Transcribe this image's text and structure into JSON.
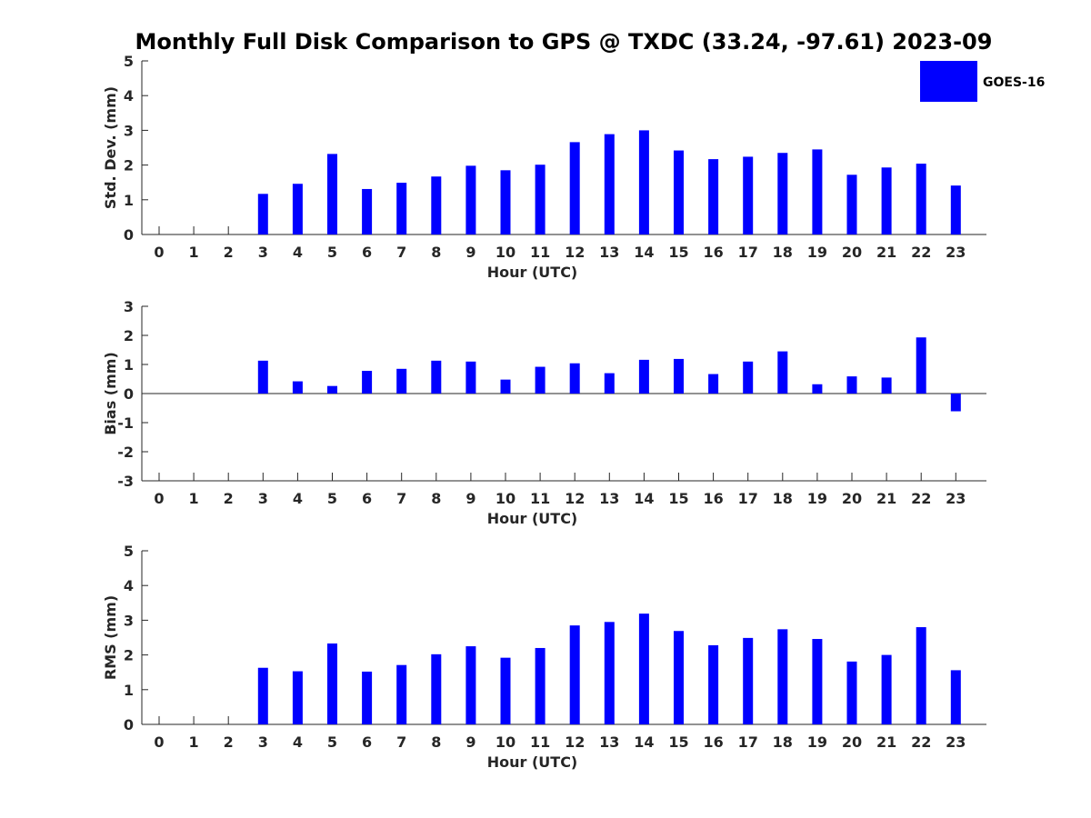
{
  "title": "Monthly Full Disk Comparison to GPS @ TXDC (33.24, -97.61) 2023-09",
  "colors": {
    "bar": "#0000ff",
    "axis": "#262626",
    "background": "#ffffff"
  },
  "legend": {
    "label": "GOES-16",
    "placement": "top-right"
  },
  "chart_data": [
    {
      "type": "bar",
      "ylabel": "Std. Dev. (mm)",
      "xlabel": "Hour (UTC)",
      "ylim": [
        0,
        5
      ],
      "yticks": [
        0,
        1,
        2,
        3,
        4,
        5
      ],
      "categories": [
        0,
        1,
        2,
        3,
        4,
        5,
        6,
        7,
        8,
        9,
        10,
        11,
        12,
        13,
        14,
        15,
        16,
        17,
        18,
        19,
        20,
        21,
        22,
        23
      ],
      "series": [
        {
          "name": "GOES-16",
          "values": [
            null,
            null,
            null,
            1.17,
            1.46,
            2.32,
            1.31,
            1.49,
            1.67,
            1.98,
            1.85,
            2.01,
            2.66,
            2.89,
            3.0,
            2.42,
            2.17,
            2.24,
            2.35,
            2.45,
            1.72,
            1.93,
            2.04,
            1.41
          ]
        }
      ]
    },
    {
      "type": "bar",
      "ylabel": "Bias (mm)",
      "xlabel": "Hour (UTC)",
      "ylim": [
        -3,
        3
      ],
      "yticks": [
        -3,
        -2,
        -1,
        0,
        1,
        2,
        3
      ],
      "categories": [
        0,
        1,
        2,
        3,
        4,
        5,
        6,
        7,
        8,
        9,
        10,
        11,
        12,
        13,
        14,
        15,
        16,
        17,
        18,
        19,
        20,
        21,
        22,
        23
      ],
      "series": [
        {
          "name": "GOES-16",
          "values": [
            null,
            null,
            null,
            1.13,
            0.42,
            0.26,
            0.78,
            0.85,
            1.13,
            1.1,
            0.48,
            0.92,
            1.04,
            0.7,
            1.16,
            1.19,
            0.67,
            1.1,
            1.45,
            0.32,
            0.59,
            0.55,
            1.93,
            -0.61
          ]
        }
      ]
    },
    {
      "type": "bar",
      "ylabel": "RMS (mm)",
      "xlabel": "Hour (UTC)",
      "ylim": [
        0,
        5
      ],
      "yticks": [
        0,
        1,
        2,
        3,
        4,
        5
      ],
      "categories": [
        0,
        1,
        2,
        3,
        4,
        5,
        6,
        7,
        8,
        9,
        10,
        11,
        12,
        13,
        14,
        15,
        16,
        17,
        18,
        19,
        20,
        21,
        22,
        23
      ],
      "series": [
        {
          "name": "GOES-16",
          "values": [
            null,
            null,
            null,
            1.63,
            1.53,
            2.33,
            1.52,
            1.71,
            2.02,
            2.25,
            1.92,
            2.2,
            2.85,
            2.95,
            3.19,
            2.69,
            2.28,
            2.49,
            2.74,
            2.46,
            1.81,
            2.0,
            2.8,
            1.56
          ]
        }
      ]
    }
  ]
}
